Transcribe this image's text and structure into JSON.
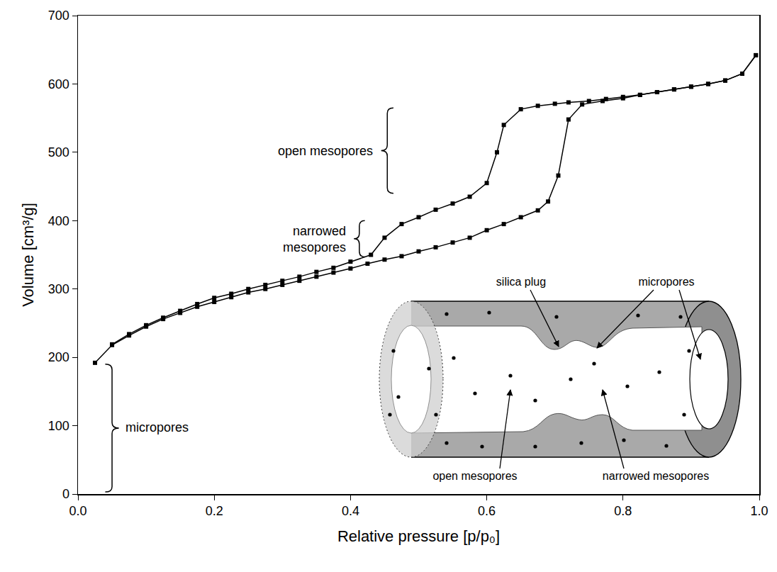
{
  "chart_data": {
    "type": "line",
    "marker": "square",
    "line_style": "solid",
    "grid": false,
    "xaxis_title": "Relative pressure [p/p₀]",
    "yaxis_title": "Volume [cm³/g]",
    "xlim": [
      0,
      1
    ],
    "ylim": [
      0,
      700
    ],
    "xticks": [
      {
        "value": 0,
        "label": "0.0"
      },
      0.2,
      0.4,
      0.6,
      0.8,
      {
        "value": 1,
        "label": "1.0"
      }
    ],
    "yticks": [
      0,
      100,
      200,
      300,
      400,
      500,
      600,
      700
    ],
    "series": [
      {
        "color": "#000000",
        "x": [
          0.025,
          0.05,
          0.075,
          0.1,
          0.125,
          0.15,
          0.175,
          0.2,
          0.225,
          0.25,
          0.275,
          0.3,
          0.325,
          0.35,
          0.375,
          0.4,
          0.425,
          0.45,
          0.475,
          0.5,
          0.525,
          0.55,
          0.575,
          0.6,
          0.625,
          0.65,
          0.675,
          0.69,
          0.705,
          0.72,
          0.74,
          0.77,
          0.8,
          0.825,
          0.85,
          0.875,
          0.9,
          0.925,
          0.95,
          0.975,
          0.995
        ],
        "values": [
          192,
          218,
          232,
          245,
          256,
          265,
          274,
          281,
          288,
          295,
          300,
          306,
          312,
          318,
          324,
          330,
          337,
          343,
          348,
          355,
          361,
          368,
          375,
          386,
          395,
          405,
          415,
          428,
          466,
          548,
          570,
          575,
          579,
          584,
          588,
          592,
          596,
          600,
          605,
          615,
          642
        ]
      },
      {
        "color": "#000000",
        "x": [
          0.995,
          0.975,
          0.95,
          0.925,
          0.9,
          0.875,
          0.85,
          0.825,
          0.8,
          0.775,
          0.75,
          0.72,
          0.7,
          0.675,
          0.65,
          0.625,
          0.615,
          0.6,
          0.575,
          0.55,
          0.525,
          0.5,
          0.475,
          0.45,
          0.43,
          0.4,
          0.375,
          0.35,
          0.325,
          0.3,
          0.275,
          0.25,
          0.225,
          0.2,
          0.175,
          0.15,
          0.125,
          0.1,
          0.075,
          0.05
        ],
        "values": [
          642,
          615,
          605,
          600,
          596,
          592,
          588,
          584,
          581,
          578,
          575,
          573,
          571,
          568,
          563,
          540,
          500,
          455,
          435,
          425,
          416,
          405,
          395,
          375,
          350,
          340,
          331,
          325,
          318,
          312,
          306,
          300,
          293,
          287,
          278,
          268,
          258,
          247,
          234,
          219
        ]
      }
    ],
    "annotations": [
      "open mesopores",
      "narrowed mesopores",
      "micropores"
    ],
    "inset": {
      "top_labels": [
        "silica plug",
        "micropores"
      ],
      "bottom_labels": [
        "open mesopores",
        "narrowed mesopores"
      ]
    }
  }
}
